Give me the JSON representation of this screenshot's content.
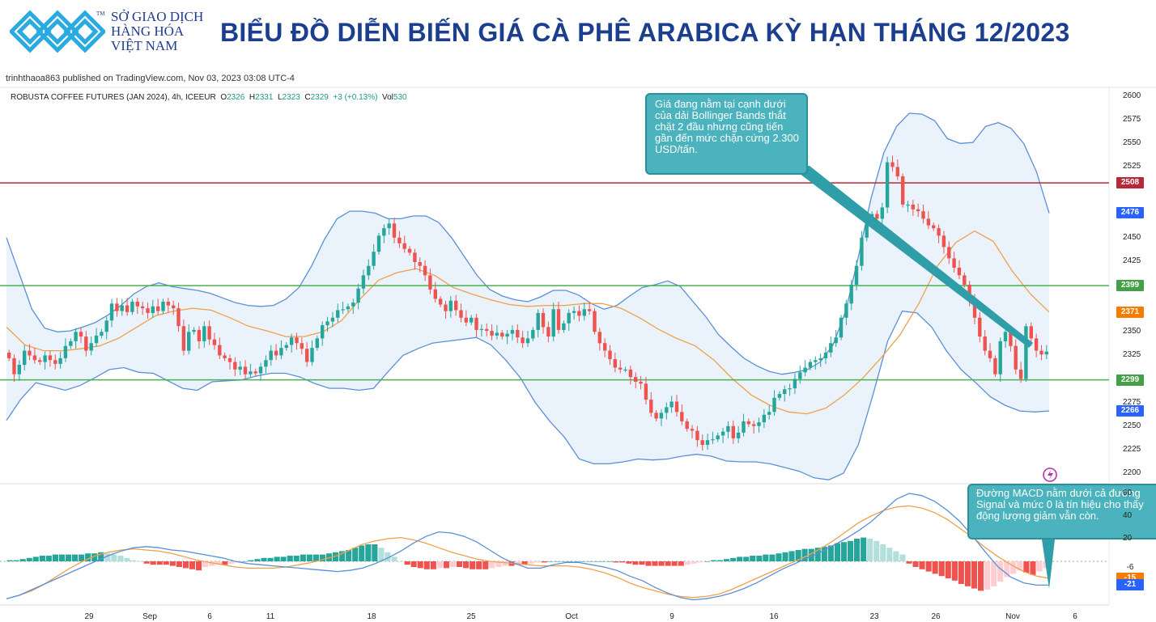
{
  "header": {
    "logo_line1": "SỞ GIAO DỊCH",
    "logo_line2": "HÀNG HÓA",
    "logo_line3": "VIỆT NAM",
    "logo_tm": "TM",
    "title": "BIỂU ĐỒ DIỄN BIẾN GIÁ CÀ PHÊ ARABICA KỲ HẠN THÁNG 12/2023"
  },
  "publisher": "trinhthaoa863 published on TradingView.com, Nov 03, 2023 03:08 UTC-4",
  "legend": {
    "symbol": "ROBUSTA COFFEE FUTURES (JAN 2024), 4h, ICEEUR",
    "o_label": "O",
    "o": "2326",
    "h_label": "H",
    "h": "2331",
    "l_label": "L",
    "l": "2323",
    "c_label": "C",
    "c": "2329",
    "change": "+3 (+0.13%)",
    "vol_label": "Vol",
    "vol": "530"
  },
  "annotations": {
    "bollinger": "Giá đang nằm tại cạnh dưới của dải Bollinger Bands thắt chặt 2 đầu nhưng cũng tiến gần đến mức chặn cứng 2.300 USD/tấn.",
    "macd": "Đường MACD nằm dưới cả đường Signal và mức 0 là tín hiệu cho thấy động lượng giảm vẫn còn."
  },
  "colors": {
    "up": "#26a69a",
    "down": "#ef5350",
    "band_line": "#5b8fd6",
    "band_fill": "#eaf3fb",
    "ma": "#f0a04b",
    "resistance": "#b8283a",
    "support": "#4caf50",
    "trend": "#2f9ea8",
    "title": "#1b3f8e"
  },
  "chart_data": [
    {
      "type": "candlestick",
      "title": "ROBUSTA COFFEE FUTURES (JAN 2024), 4h, ICEEUR",
      "x_ticks": [
        "29",
        "Sep",
        "6",
        "11",
        "18",
        "25",
        "Oct",
        "9",
        "16",
        "23",
        "26",
        "Nov",
        "6"
      ],
      "y_ticks": [
        2200,
        2225,
        2250,
        2275,
        2300,
        2325,
        2350,
        2375,
        2400,
        2425,
        2450,
        2475,
        2500,
        2525,
        2550,
        2575,
        2600
      ],
      "ylim": [
        2188,
        2610
      ],
      "indicators": [
        "Bollinger Bands",
        "Moving Average"
      ],
      "close_series": [
        2322,
        2305,
        2315,
        2330,
        2325,
        2320,
        2318,
        2325,
        2320,
        2316,
        2322,
        2335,
        2340,
        2350,
        2345,
        2330,
        2338,
        2346,
        2350,
        2362,
        2380,
        2372,
        2378,
        2371,
        2382,
        2377,
        2375,
        2370,
        2377,
        2372,
        2382,
        2378,
        2375,
        2356,
        2330,
        2350,
        2352,
        2340,
        2356,
        2342,
        2336,
        2325,
        2322,
        2318,
        2310,
        2313,
        2305,
        2308,
        2306,
        2313,
        2320,
        2330,
        2325,
        2333,
        2336,
        2344,
        2338,
        2332,
        2318,
        2333,
        2343,
        2357,
        2361,
        2365,
        2373,
        2374,
        2377,
        2381,
        2396,
        2410,
        2420,
        2435,
        2452,
        2460,
        2465,
        2450,
        2444,
        2438,
        2434,
        2424,
        2420,
        2410,
        2395,
        2385,
        2379,
        2372,
        2383,
        2373,
        2365,
        2360,
        2365,
        2352,
        2353,
        2351,
        2346,
        2349,
        2345,
        2348,
        2352,
        2344,
        2338,
        2343,
        2352,
        2370,
        2355,
        2345,
        2374,
        2352,
        2359,
        2370,
        2372,
        2367,
        2374,
        2372,
        2350,
        2338,
        2330,
        2321,
        2312,
        2310,
        2310,
        2302,
        2297,
        2295,
        2278,
        2264,
        2258,
        2264,
        2270,
        2276,
        2265,
        2255,
        2247,
        2245,
        2235,
        2230,
        2235,
        2236,
        2240,
        2244,
        2250,
        2237,
        2243,
        2255,
        2252,
        2250,
        2254,
        2262,
        2265,
        2280,
        2284,
        2289,
        2290,
        2300,
        2307,
        2312,
        2318,
        2320,
        2322,
        2328,
        2338,
        2344,
        2365,
        2380,
        2400,
        2420,
        2450,
        2465,
        2475,
        2470,
        2482,
        2530,
        2525,
        2515,
        2485,
        2485,
        2480,
        2478,
        2470,
        2463,
        2460,
        2452,
        2440,
        2428,
        2418,
        2410,
        2400,
        2385,
        2365,
        2345,
        2330,
        2322,
        2305,
        2340,
        2350,
        2335,
        2310,
        2300,
        2356,
        2343,
        2330,
        2326,
        2329
      ],
      "bollinger_upper": [
        2450,
        2412,
        2374,
        2354,
        2350,
        2351,
        2355,
        2360,
        2368,
        2378,
        2390,
        2398,
        2402,
        2398,
        2396,
        2394,
        2391,
        2386,
        2381,
        2378,
        2377,
        2378,
        2385,
        2397,
        2420,
        2448,
        2470,
        2478,
        2478,
        2476,
        2470,
        2470,
        2473,
        2473,
        2466,
        2450,
        2430,
        2410,
        2395,
        2388,
        2384,
        2382,
        2387,
        2394,
        2394,
        2389,
        2380,
        2374,
        2378,
        2388,
        2397,
        2400,
        2404,
        2398,
        2382,
        2366,
        2347,
        2334,
        2322,
        2314,
        2308,
        2305,
        2307,
        2310,
        2318,
        2336,
        2372,
        2430,
        2492,
        2540,
        2568,
        2582,
        2581,
        2574,
        2555,
        2550,
        2551,
        2568,
        2572,
        2566,
        2550,
        2520,
        2476
      ],
      "bollinger_lower": [
        2256,
        2279,
        2296,
        2292,
        2288,
        2293,
        2301,
        2310,
        2312,
        2307,
        2306,
        2298,
        2290,
        2288,
        2297,
        2298,
        2299,
        2303,
        2306,
        2306,
        2302,
        2295,
        2290,
        2290,
        2288,
        2290,
        2308,
        2325,
        2332,
        2338,
        2340,
        2342,
        2344,
        2336,
        2320,
        2301,
        2275,
        2255,
        2238,
        2215,
        2210,
        2210,
        2212,
        2215,
        2214,
        2215,
        2218,
        2220,
        2218,
        2213,
        2212,
        2212,
        2210,
        2206,
        2202,
        2195,
        2193,
        2200,
        2230,
        2283,
        2340,
        2372,
        2370,
        2355,
        2330,
        2310,
        2296,
        2281,
        2272,
        2266,
        2265,
        2266
      ],
      "moving_average": [
        2355,
        2336,
        2330,
        2330,
        2332,
        2335,
        2343,
        2355,
        2367,
        2372,
        2375,
        2373,
        2365,
        2356,
        2351,
        2345,
        2345,
        2350,
        2362,
        2385,
        2405,
        2413,
        2417,
        2410,
        2397,
        2390,
        2384,
        2379,
        2377,
        2378,
        2378,
        2380,
        2380,
        2375,
        2365,
        2353,
        2343,
        2335,
        2320,
        2300,
        2283,
        2272,
        2265,
        2263,
        2269,
        2283,
        2301,
        2323,
        2347,
        2380,
        2420,
        2445,
        2457,
        2446,
        2415,
        2390,
        2371
      ],
      "resistance": 2508,
      "resistance_2": 2399,
      "support": 2299,
      "last_price_labels": [
        2508,
        2476,
        2399,
        2371,
        2299,
        2266
      ]
    },
    {
      "type": "bar",
      "title": "MACD",
      "y_ticks": [
        60,
        40,
        20,
        -6,
        -15,
        -21
      ],
      "ylim": [
        -42,
        68
      ],
      "histogram": [
        1,
        1,
        2,
        3,
        4,
        5,
        5,
        6,
        6,
        6,
        6,
        6,
        7,
        7,
        8,
        7,
        6,
        5,
        3,
        1,
        0,
        -2,
        -3,
        -3,
        -3,
        -4,
        -5,
        -6,
        -7,
        -8,
        -5,
        -4,
        -3,
        -3,
        -2,
        -1,
        0,
        1,
        2,
        3,
        3,
        4,
        4,
        5,
        5,
        6,
        6,
        6,
        6,
        7,
        8,
        9,
        10,
        12,
        14,
        15,
        15,
        12,
        8,
        4,
        0,
        -3,
        -5,
        -6,
        -7,
        -7,
        -6,
        -6,
        -5,
        -5,
        -6,
        -7,
        -7,
        -7,
        -6,
        -5,
        -4,
        -4,
        -3,
        -3,
        -2,
        -1,
        -1,
        0,
        0,
        0,
        0,
        0,
        0,
        0,
        0,
        0,
        0,
        -1,
        -1,
        -2,
        -3,
        -3,
        -4,
        -4,
        -4,
        -4,
        -4,
        -4,
        -3,
        -2,
        -1,
        0,
        1,
        1,
        2,
        3,
        4,
        4,
        5,
        5,
        6,
        6,
        7,
        8,
        9,
        10,
        11,
        11,
        12,
        13,
        14,
        16,
        17,
        18,
        20,
        21,
        20,
        18,
        15,
        12,
        9,
        6,
        -2,
        -5,
        -7,
        -9,
        -11,
        -13,
        -15,
        -17,
        -20,
        -22,
        -24,
        -26,
        -25,
        -22,
        -18,
        -14,
        -11,
        -8,
        -10,
        -12,
        -9,
        -6
      ],
      "macd_line": [
        -33,
        -30,
        -25,
        -20,
        -15,
        -10,
        -5,
        0,
        5,
        9,
        12,
        13,
        12,
        10,
        9,
        7,
        5,
        3,
        0,
        -2,
        -3,
        -4,
        -5,
        -6,
        -7,
        -8,
        -9,
        -8,
        -6,
        -2,
        3,
        9,
        16,
        22,
        26,
        25,
        22,
        17,
        10,
        3,
        -2,
        -6,
        -6,
        -3,
        -1,
        -1,
        -3,
        -5,
        -8,
        -13,
        -17,
        -23,
        -28,
        -32,
        -34,
        -33,
        -31,
        -28,
        -24,
        -19,
        -13,
        -7,
        -2,
        3,
        8,
        14,
        20,
        27,
        35,
        45,
        55,
        60,
        58,
        53,
        45,
        35,
        22,
        8,
        -5,
        -14,
        -19,
        -21,
        -21
      ],
      "signal_line": [
        -33,
        -30,
        -26,
        -20,
        -13,
        -6,
        0,
        5,
        8,
        10,
        11,
        10,
        9,
        7,
        4,
        1,
        -1,
        -3,
        -5,
        -6,
        -6,
        -6,
        -5,
        -3,
        -1,
        2,
        5,
        10,
        15,
        18,
        20,
        21,
        19,
        16,
        12,
        8,
        5,
        2,
        0,
        -1,
        -2,
        -3,
        -4,
        -4,
        -4,
        -5,
        -7,
        -10,
        -14,
        -19,
        -23,
        -26,
        -29,
        -31,
        -32,
        -31,
        -29,
        -25,
        -20,
        -15,
        -10,
        -5,
        0,
        5,
        11,
        18,
        26,
        34,
        40,
        45,
        48,
        49,
        47,
        43,
        37,
        29,
        21,
        12,
        4,
        -3,
        -9,
        -13,
        -15
      ]
    }
  ]
}
